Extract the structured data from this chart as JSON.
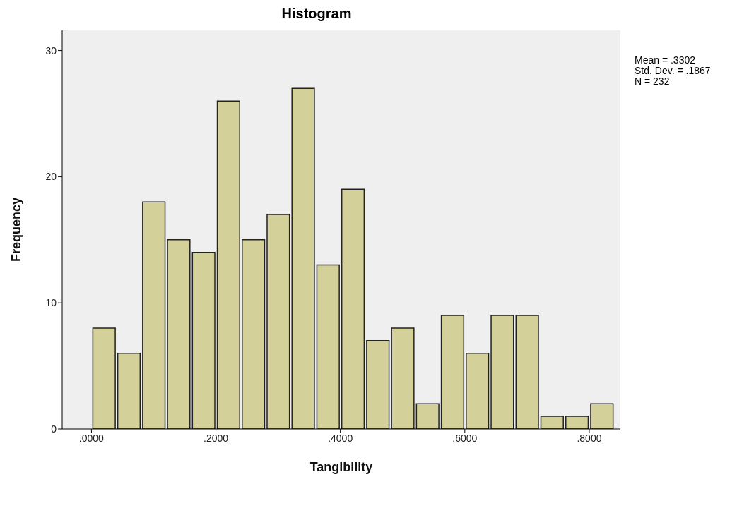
{
  "chart_data": {
    "type": "histogram",
    "title": "Histogram",
    "xlabel": "Tangibility",
    "ylabel": "Frequency",
    "bins": [
      0,
      0.04,
      0.08,
      0.12,
      0.16,
      0.2,
      0.24,
      0.28,
      0.32,
      0.36,
      0.4,
      0.44,
      0.48,
      0.52,
      0.56,
      0.6,
      0.64,
      0.68,
      0.72,
      0.76,
      0.8,
      0.84
    ],
    "values": [
      8,
      6,
      18,
      15,
      14,
      26,
      15,
      17,
      27,
      13,
      19,
      7,
      8,
      2,
      9,
      6,
      9,
      9,
      1,
      1,
      2
    ],
    "color": "#d4d09a",
    "xlim": [
      -0.047,
      0.85
    ],
    "xticks": [
      {
        "value": 0,
        "label": ".0000"
      },
      {
        "value": 0.2,
        "label": ".2000"
      },
      {
        "value": 0.4,
        "label": ".4000"
      },
      {
        "value": 0.6,
        "label": ".6000"
      },
      {
        "value": 0.8,
        "label": ".8000"
      }
    ],
    "ylim": [
      0,
      31.6
    ],
    "yticks": [
      0,
      10,
      20,
      30
    ],
    "grid": false,
    "annotations": [
      "Mean = .3302\nStd. Dev. = .1867\nN = 232"
    ]
  }
}
